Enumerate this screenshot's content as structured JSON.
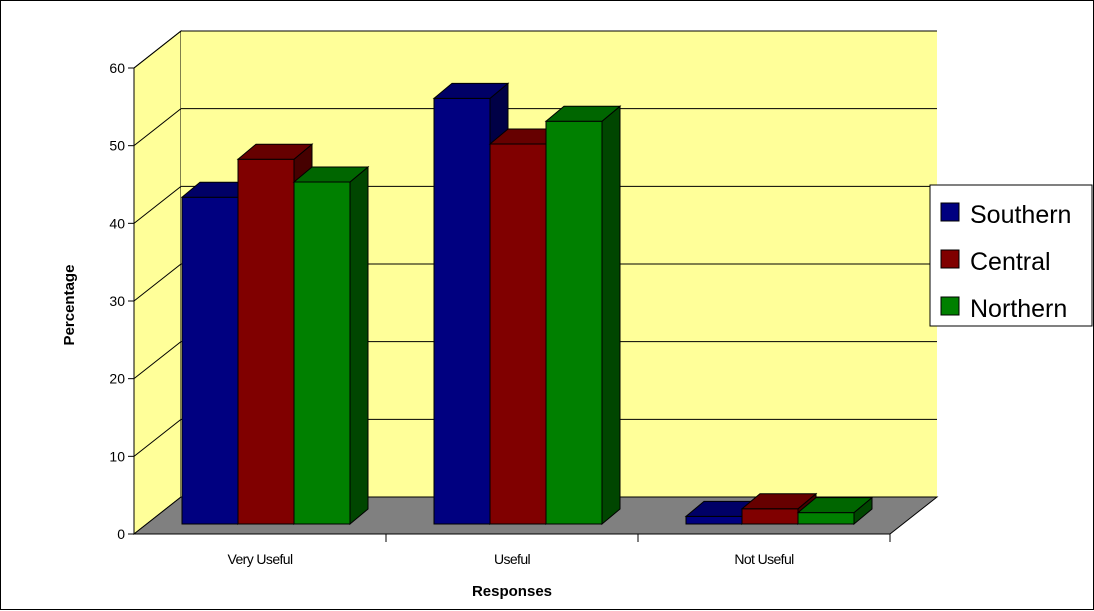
{
  "chart_data": {
    "type": "bar",
    "title": "",
    "xlabel": "Responses",
    "ylabel": "Percentage",
    "categories": [
      "Very Useful",
      "Useful",
      "Not Useful"
    ],
    "series": [
      {
        "name": "Southern",
        "values": [
          43,
          56,
          1
        ],
        "color": "#000080"
      },
      {
        "name": "Central",
        "values": [
          48,
          50,
          2
        ],
        "color": "#800000"
      },
      {
        "name": "Northern",
        "values": [
          45,
          53,
          1.5
        ],
        "color": "#008000"
      }
    ],
    "ylim": [
      0,
      60
    ],
    "yticks": [
      0,
      10,
      20,
      30,
      40,
      50,
      60
    ],
    "grid": true,
    "three_d": true,
    "wall_color": "#FFFF99",
    "floor_color": "#808080",
    "legend_position": "right"
  }
}
